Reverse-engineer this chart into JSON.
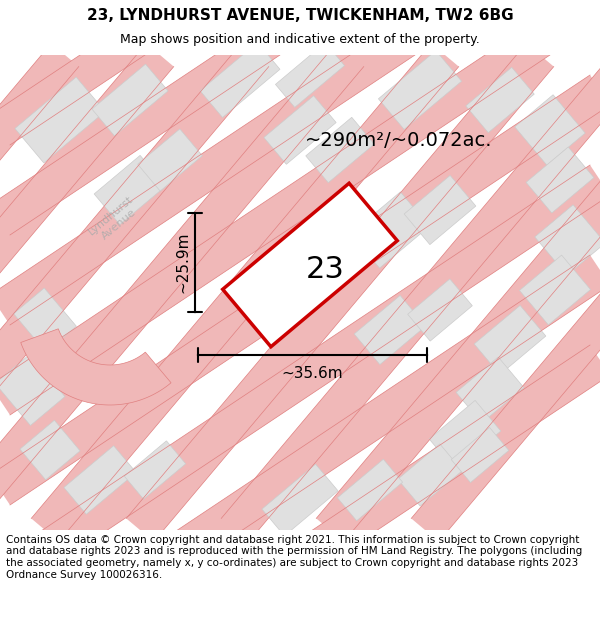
{
  "title": "23, LYNDHURST AVENUE, TWICKENHAM, TW2 6BG",
  "subtitle": "Map shows position and indicative extent of the property.",
  "area_label": "~290m²/~0.072ac.",
  "plot_number": "23",
  "width_label": "~35.6m",
  "height_label": "~25.9m",
  "background_color": "#f5f5f5",
  "map_bg": "#f0f0f0",
  "road_color": "#e8a0a0",
  "building_color": "#e0e0e0",
  "plot_outline_color": "#cc0000",
  "dim_line_color": "#111111",
  "footer_text": "Contains OS data © Crown copyright and database right 2021. This information is subject to Crown copyright and database rights 2023 and is reproduced with the permission of HM Land Registry. The polygons (including the associated geometry, namely x, y co-ordinates) are subject to Crown copyright and database rights 2023 Ordnance Survey 100026316.",
  "title_fontsize": 11,
  "subtitle_fontsize": 9,
  "footer_fontsize": 7.5
}
